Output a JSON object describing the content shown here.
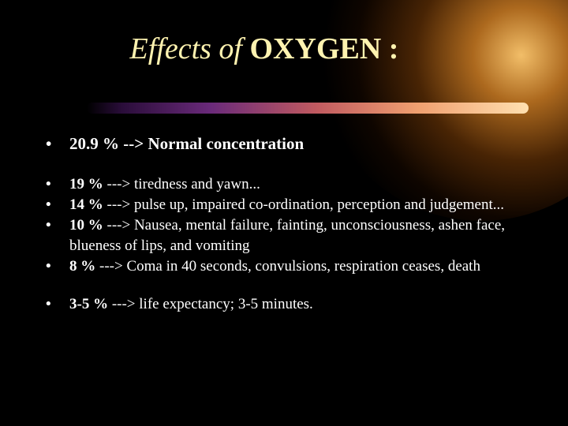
{
  "title": {
    "prefix": "Effects of ",
    "emphasis": "OXYGEN :"
  },
  "bullet_symbol": "•",
  "bullets": [
    {
      "label": "20.9 %",
      "text": "--> Normal concentration"
    },
    {
      "label": "19 %",
      "text": "---> tiredness and yawn..."
    },
    {
      "label": "14 %",
      "text": "---> pulse up, impaired co-ordination, perception and judgement..."
    },
    {
      "label": "10 %",
      "text": "---> Nausea, mental failure, fainting, unconsciousness, ashen face, blueness of lips, and vomiting"
    },
    {
      "label": "8 %",
      "text": "---> Coma in 40 seconds, convulsions, respiration ceases, death"
    },
    {
      "label": "3-5 %",
      "text": "---> life expectancy; 3-5 minutes."
    }
  ],
  "colors": {
    "background": "#000000",
    "title": "#fff3b0",
    "body_text": "#ffffff",
    "accent_glow": "#e68c28"
  }
}
